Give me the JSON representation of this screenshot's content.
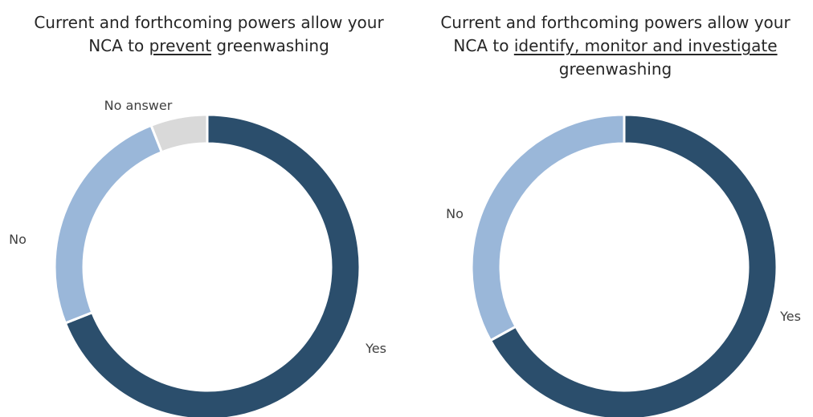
{
  "chart_data": [
    {
      "type": "donut",
      "title_parts": [
        {
          "text": "Current and forthcoming powers allow your",
          "u": false,
          "br": true
        },
        {
          "text": "NCA to ",
          "u": false
        },
        {
          "text": "prevent",
          "u": true
        },
        {
          "text": " greenwashing",
          "u": false
        }
      ],
      "slices": [
        {
          "name": "Yes",
          "value": 69,
          "color": "#2b4e6c"
        },
        {
          "name": "No",
          "value": 25,
          "color": "#9ab7d9"
        },
        {
          "name": "No answer",
          "value": 6,
          "color": "#d9d9d9"
        }
      ]
    },
    {
      "type": "donut",
      "title_parts": [
        {
          "text": "Current and forthcoming powers allow your",
          "u": false,
          "br": true
        },
        {
          "text": "NCA to ",
          "u": false
        },
        {
          "text": "identify, monitor and investigate",
          "u": true,
          "br": true
        },
        {
          "text": "greenwashing",
          "u": false
        }
      ],
      "slices": [
        {
          "name": "Yes",
          "value": 67,
          "color": "#2b4e6c"
        },
        {
          "name": "No",
          "value": 33,
          "color": "#9ab7d9"
        }
      ]
    }
  ]
}
